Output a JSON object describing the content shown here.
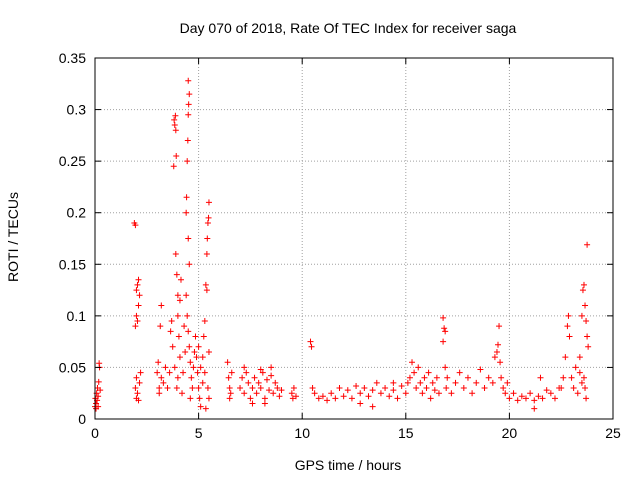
{
  "chart_data": {
    "type": "scatter",
    "title": "Day 070 of 2018, Rate Of TEC Index for receiver saga",
    "xlabel": "GPS time / hours",
    "ylabel": "ROTI / TECUs",
    "xlim": [
      0,
      25
    ],
    "ylim": [
      0,
      0.35
    ],
    "xticks": [
      0,
      5,
      10,
      15,
      20,
      25
    ],
    "xtick_labels": [
      "0",
      "5",
      "10",
      "15",
      "20",
      "25"
    ],
    "yticks": [
      0,
      0.05,
      0.1,
      0.15,
      0.2,
      0.25,
      0.3,
      0.35
    ],
    "ytick_labels": [
      "0",
      "0.05",
      "0.1",
      "0.15",
      "0.2",
      "0.25",
      "0.3",
      "0.35"
    ],
    "grid": true,
    "legend": "none",
    "marker": "+",
    "series_color": "#ff0000",
    "series": [
      {
        "name": "ROTI",
        "points": [
          [
            0.0,
            0.012
          ],
          [
            0.02,
            0.02
          ],
          [
            0.05,
            0.015
          ],
          [
            0.08,
            0.025
          ],
          [
            0.1,
            0.018
          ],
          [
            0.12,
            0.03
          ],
          [
            0.15,
            0.022
          ],
          [
            0.18,
            0.036
          ],
          [
            0.2,
            0.054
          ],
          [
            0.22,
            0.05
          ],
          [
            0.25,
            0.028
          ],
          [
            0.05,
            0.01
          ],
          [
            0.15,
            0.012
          ],
          [
            1.9,
            0.19
          ],
          [
            1.95,
            0.188
          ],
          [
            1.95,
            0.09
          ],
          [
            2.0,
            0.1
          ],
          [
            2.0,
            0.125
          ],
          [
            2.05,
            0.13
          ],
          [
            2.1,
            0.135
          ],
          [
            2.05,
            0.095
          ],
          [
            2.0,
            0.04
          ],
          [
            1.95,
            0.03
          ],
          [
            2.05,
            0.025
          ],
          [
            2.1,
            0.018
          ],
          [
            2.15,
            0.035
          ],
          [
            2.2,
            0.045
          ],
          [
            2.0,
            0.02
          ],
          [
            2.1,
            0.11
          ],
          [
            2.15,
            0.12
          ],
          [
            3.0,
            0.045
          ],
          [
            3.05,
            0.055
          ],
          [
            3.1,
            0.03
          ],
          [
            3.15,
            0.09
          ],
          [
            3.2,
            0.11
          ],
          [
            3.1,
            0.025
          ],
          [
            3.2,
            0.04
          ],
          [
            3.3,
            0.035
          ],
          [
            3.4,
            0.05
          ],
          [
            3.5,
            0.03
          ],
          [
            3.6,
            0.045
          ],
          [
            3.65,
            0.085
          ],
          [
            3.7,
            0.095
          ],
          [
            3.8,
            0.245
          ],
          [
            3.82,
            0.29
          ],
          [
            3.85,
            0.285
          ],
          [
            3.88,
            0.294
          ],
          [
            3.9,
            0.28
          ],
          [
            3.92,
            0.255
          ],
          [
            3.9,
            0.16
          ],
          [
            3.95,
            0.14
          ],
          [
            4.0,
            0.12
          ],
          [
            4.0,
            0.1
          ],
          [
            4.05,
            0.08
          ],
          [
            4.1,
            0.06
          ],
          [
            4.0,
            0.04
          ],
          [
            3.95,
            0.03
          ],
          [
            3.85,
            0.05
          ],
          [
            3.75,
            0.07
          ],
          [
            4.1,
            0.115
          ],
          [
            4.15,
            0.135
          ],
          [
            4.2,
            0.025
          ],
          [
            4.25,
            0.045
          ],
          [
            4.3,
            0.09
          ],
          [
            4.35,
            0.065
          ],
          [
            4.4,
            0.2
          ],
          [
            4.42,
            0.215
          ],
          [
            4.45,
            0.25
          ],
          [
            4.48,
            0.27
          ],
          [
            4.5,
            0.295
          ],
          [
            4.52,
            0.305
          ],
          [
            4.55,
            0.315
          ],
          [
            4.5,
            0.328
          ],
          [
            4.5,
            0.175
          ],
          [
            4.55,
            0.15
          ],
          [
            4.4,
            0.12
          ],
          [
            4.45,
            0.1
          ],
          [
            4.5,
            0.085
          ],
          [
            4.55,
            0.07
          ],
          [
            4.6,
            0.055
          ],
          [
            4.65,
            0.04
          ],
          [
            4.7,
            0.03
          ],
          [
            4.6,
            0.02
          ],
          [
            4.75,
            0.05
          ],
          [
            4.8,
            0.065
          ],
          [
            4.85,
            0.08
          ],
          [
            4.9,
            0.06
          ],
          [
            4.95,
            0.045
          ],
          [
            5.0,
            0.03
          ],
          [
            5.05,
            0.02
          ],
          [
            5.1,
            0.012
          ],
          [
            5.0,
            0.07
          ],
          [
            5.1,
            0.05
          ],
          [
            5.2,
            0.06
          ],
          [
            5.25,
            0.08
          ],
          [
            5.3,
            0.095
          ],
          [
            5.35,
            0.13
          ],
          [
            5.4,
            0.16
          ],
          [
            5.42,
            0.175
          ],
          [
            5.45,
            0.19
          ],
          [
            5.48,
            0.195
          ],
          [
            5.5,
            0.21
          ],
          [
            5.4,
            0.125
          ],
          [
            5.3,
            0.045
          ],
          [
            5.45,
            0.03
          ],
          [
            5.5,
            0.02
          ],
          [
            5.35,
            0.01
          ],
          [
            5.5,
            0.065
          ],
          [
            5.2,
            0.035
          ],
          [
            6.4,
            0.055
          ],
          [
            6.45,
            0.04
          ],
          [
            6.5,
            0.03
          ],
          [
            6.55,
            0.025
          ],
          [
            6.6,
            0.045
          ],
          [
            6.5,
            0.02
          ],
          [
            7.0,
            0.03
          ],
          [
            7.1,
            0.04
          ],
          [
            7.2,
            0.025
          ],
          [
            7.3,
            0.045
          ],
          [
            7.4,
            0.035
          ],
          [
            7.5,
            0.02
          ],
          [
            7.6,
            0.03
          ],
          [
            7.7,
            0.04
          ],
          [
            7.8,
            0.025
          ],
          [
            7.9,
            0.035
          ],
          [
            8.0,
            0.03
          ],
          [
            8.1,
            0.045
          ],
          [
            8.2,
            0.02
          ],
          [
            8.3,
            0.038
          ],
          [
            8.4,
            0.028
          ],
          [
            8.5,
            0.042
          ],
          [
            8.6,
            0.025
          ],
          [
            8.7,
            0.035
          ],
          [
            8.8,
            0.03
          ],
          [
            8.9,
            0.022
          ],
          [
            9.0,
            0.028
          ],
          [
            7.2,
            0.05
          ],
          [
            8.0,
            0.048
          ],
          [
            8.5,
            0.05
          ],
          [
            8.2,
            0.015
          ],
          [
            7.6,
            0.015
          ],
          [
            9.5,
            0.025
          ],
          [
            9.55,
            0.02
          ],
          [
            9.6,
            0.03
          ],
          [
            9.7,
            0.022
          ],
          [
            10.4,
            0.075
          ],
          [
            10.45,
            0.07
          ],
          [
            10.5,
            0.03
          ],
          [
            10.6,
            0.025
          ],
          [
            10.8,
            0.02
          ],
          [
            11.0,
            0.022
          ],
          [
            11.2,
            0.018
          ],
          [
            11.4,
            0.025
          ],
          [
            11.6,
            0.02
          ],
          [
            11.8,
            0.03
          ],
          [
            12.0,
            0.022
          ],
          [
            12.2,
            0.028
          ],
          [
            12.4,
            0.02
          ],
          [
            12.6,
            0.032
          ],
          [
            12.8,
            0.025
          ],
          [
            13.0,
            0.03
          ],
          [
            13.2,
            0.022
          ],
          [
            13.4,
            0.028
          ],
          [
            13.6,
            0.035
          ],
          [
            13.8,
            0.025
          ],
          [
            14.0,
            0.03
          ],
          [
            14.2,
            0.022
          ],
          [
            14.4,
            0.028
          ],
          [
            14.6,
            0.02
          ],
          [
            14.8,
            0.032
          ],
          [
            12.8,
            0.015
          ],
          [
            13.4,
            0.012
          ],
          [
            14.4,
            0.035
          ],
          [
            15.0,
            0.025
          ],
          [
            15.1,
            0.035
          ],
          [
            15.2,
            0.04
          ],
          [
            15.3,
            0.055
          ],
          [
            15.4,
            0.045
          ],
          [
            15.5,
            0.03
          ],
          [
            15.6,
            0.05
          ],
          [
            15.7,
            0.035
          ],
          [
            15.8,
            0.025
          ],
          [
            15.9,
            0.04
          ],
          [
            16.0,
            0.03
          ],
          [
            16.1,
            0.045
          ],
          [
            16.2,
            0.02
          ],
          [
            16.3,
            0.035
          ],
          [
            16.4,
            0.028
          ],
          [
            16.5,
            0.04
          ],
          [
            16.6,
            0.025
          ],
          [
            16.8,
            0.098
          ],
          [
            16.85,
            0.088
          ],
          [
            16.9,
            0.085
          ],
          [
            16.8,
            0.075
          ],
          [
            16.9,
            0.05
          ],
          [
            16.95,
            0.03
          ],
          [
            17.0,
            0.04
          ],
          [
            17.2,
            0.025
          ],
          [
            17.4,
            0.035
          ],
          [
            17.6,
            0.045
          ],
          [
            17.8,
            0.03
          ],
          [
            18.0,
            0.04
          ],
          [
            18.2,
            0.025
          ],
          [
            18.4,
            0.035
          ],
          [
            18.6,
            0.048
          ],
          [
            18.8,
            0.03
          ],
          [
            19.0,
            0.04
          ],
          [
            19.2,
            0.035
          ],
          [
            19.3,
            0.06
          ],
          [
            19.4,
            0.065
          ],
          [
            19.45,
            0.072
          ],
          [
            19.5,
            0.09
          ],
          [
            19.55,
            0.055
          ],
          [
            19.6,
            0.04
          ],
          [
            19.7,
            0.03
          ],
          [
            19.8,
            0.025
          ],
          [
            19.9,
            0.035
          ],
          [
            20.0,
            0.02
          ],
          [
            20.2,
            0.025
          ],
          [
            20.4,
            0.018
          ],
          [
            20.6,
            0.022
          ],
          [
            20.8,
            0.02
          ],
          [
            21.0,
            0.025
          ],
          [
            21.2,
            0.018
          ],
          [
            21.4,
            0.022
          ],
          [
            21.6,
            0.02
          ],
          [
            21.8,
            0.028
          ],
          [
            22.0,
            0.025
          ],
          [
            22.2,
            0.02
          ],
          [
            22.4,
            0.03
          ],
          [
            21.5,
            0.04
          ],
          [
            21.2,
            0.01
          ],
          [
            22.5,
            0.03
          ],
          [
            22.6,
            0.04
          ],
          [
            22.7,
            0.06
          ],
          [
            22.8,
            0.09
          ],
          [
            22.85,
            0.1
          ],
          [
            22.9,
            0.08
          ],
          [
            23.0,
            0.04
          ],
          [
            23.1,
            0.03
          ],
          [
            23.2,
            0.05
          ],
          [
            23.3,
            0.025
          ],
          [
            23.4,
            0.06
          ],
          [
            23.5,
            0.1
          ],
          [
            23.55,
            0.125
          ],
          [
            23.6,
            0.13
          ],
          [
            23.65,
            0.11
          ],
          [
            23.7,
            0.095
          ],
          [
            23.75,
            0.08
          ],
          [
            23.8,
            0.07
          ],
          [
            23.6,
            0.04
          ],
          [
            23.65,
            0.03
          ],
          [
            23.7,
            0.02
          ],
          [
            23.75,
            0.169
          ],
          [
            23.4,
            0.045
          ],
          [
            23.5,
            0.035
          ]
        ]
      }
    ]
  }
}
